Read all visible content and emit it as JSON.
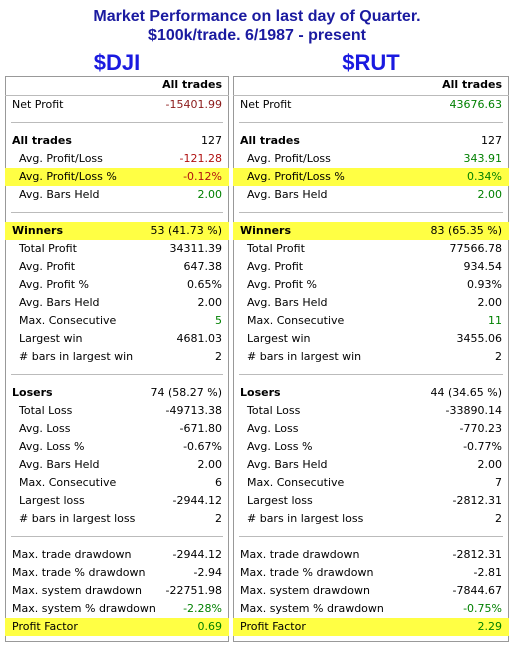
{
  "header": {
    "title": "Market Performance on last day of Quarter.",
    "subtitle": "$100k/trade. 6/1987 - present"
  },
  "panels": [
    {
      "symbol": "$DJI",
      "column_header": "All trades",
      "sections": [
        {
          "rows": [
            {
              "label": "Net Profit",
              "value": "-15401.99",
              "color": "#8b1a1a",
              "style": "plain"
            }
          ]
        },
        {
          "rows": [
            {
              "label": "All trades",
              "value": "127",
              "color": "#000000",
              "style": "head"
            },
            {
              "label": "Avg. Profit/Loss",
              "value": "-121.28",
              "color": "#b01010",
              "style": "sub"
            },
            {
              "label": "Avg. Profit/Loss %",
              "value": "-0.12%",
              "color": "#b01010",
              "style": "sub",
              "highlight": true
            },
            {
              "label": "Avg. Bars Held",
              "value": "2.00",
              "color": "#008000",
              "style": "sub"
            }
          ]
        },
        {
          "rows": [
            {
              "label": "Winners",
              "value": "53 (41.73 %)",
              "color": "#000000",
              "style": "head",
              "highlight": true
            },
            {
              "label": "Total Profit",
              "value": "34311.39",
              "color": "#000000",
              "style": "sub"
            },
            {
              "label": "Avg. Profit",
              "value": "647.38",
              "color": "#000000",
              "style": "sub"
            },
            {
              "label": "Avg. Profit %",
              "value": "0.65%",
              "color": "#000000",
              "style": "sub"
            },
            {
              "label": "Avg. Bars Held",
              "value": "2.00",
              "color": "#000000",
              "style": "sub"
            },
            {
              "label": "Max. Consecutive",
              "value": "5",
              "color": "#008000",
              "style": "sub"
            },
            {
              "label": "Largest win",
              "value": "4681.03",
              "color": "#000000",
              "style": "sub"
            },
            {
              "label": "# bars in largest win",
              "value": "2",
              "color": "#000000",
              "style": "sub"
            }
          ]
        },
        {
          "rows": [
            {
              "label": "Losers",
              "value": "74 (58.27 %)",
              "color": "#000000",
              "style": "head"
            },
            {
              "label": "Total Loss",
              "value": "-49713.38",
              "color": "#000000",
              "style": "sub"
            },
            {
              "label": "Avg. Loss",
              "value": "-671.80",
              "color": "#000000",
              "style": "sub"
            },
            {
              "label": "Avg. Loss %",
              "value": "-0.67%",
              "color": "#000000",
              "style": "sub"
            },
            {
              "label": "Avg. Bars Held",
              "value": "2.00",
              "color": "#000000",
              "style": "sub"
            },
            {
              "label": "Max. Consecutive",
              "value": "6",
              "color": "#000000",
              "style": "sub"
            },
            {
              "label": "Largest loss",
              "value": "-2944.12",
              "color": "#000000",
              "style": "sub"
            },
            {
              "label": "# bars in largest loss",
              "value": "2",
              "color": "#000000",
              "style": "sub"
            }
          ]
        },
        {
          "rows": [
            {
              "label": "Max. trade drawdown",
              "value": "-2944.12",
              "color": "#000000",
              "style": "plain"
            },
            {
              "label": "Max. trade % drawdown",
              "value": "-2.94",
              "color": "#000000",
              "style": "plain"
            },
            {
              "label": "Max. system drawdown",
              "value": "-22751.98",
              "color": "#000000",
              "style": "plain"
            },
            {
              "label": "Max. system % drawdown",
              "value": "-2.28%",
              "color": "#008000",
              "style": "plain"
            },
            {
              "label": "Profit Factor",
              "value": "0.69",
              "color": "#008000",
              "style": "plain",
              "highlight": true
            }
          ]
        }
      ]
    },
    {
      "symbol": "$RUT",
      "column_header": "All trades",
      "sections": [
        {
          "rows": [
            {
              "label": "Net Profit",
              "value": "43676.63",
              "color": "#008000",
              "style": "plain"
            }
          ]
        },
        {
          "rows": [
            {
              "label": "All trades",
              "value": "127",
              "color": "#000000",
              "style": "head"
            },
            {
              "label": "Avg. Profit/Loss",
              "value": "343.91",
              "color": "#008000",
              "style": "sub"
            },
            {
              "label": "Avg. Profit/Loss %",
              "value": "0.34%",
              "color": "#008000",
              "style": "sub",
              "highlight": true
            },
            {
              "label": "Avg. Bars Held",
              "value": "2.00",
              "color": "#008000",
              "style": "sub"
            }
          ]
        },
        {
          "rows": [
            {
              "label": "Winners",
              "value": "83 (65.35 %)",
              "color": "#000000",
              "style": "head",
              "highlight": true
            },
            {
              "label": "Total Profit",
              "value": "77566.78",
              "color": "#000000",
              "style": "sub"
            },
            {
              "label": "Avg. Profit",
              "value": "934.54",
              "color": "#000000",
              "style": "sub"
            },
            {
              "label": "Avg. Profit %",
              "value": "0.93%",
              "color": "#000000",
              "style": "sub"
            },
            {
              "label": "Avg. Bars Held",
              "value": "2.00",
              "color": "#000000",
              "style": "sub"
            },
            {
              "label": "Max. Consecutive",
              "value": "11",
              "color": "#008000",
              "style": "sub"
            },
            {
              "label": "Largest win",
              "value": "3455.06",
              "color": "#000000",
              "style": "sub"
            },
            {
              "label": "# bars in largest win",
              "value": "2",
              "color": "#000000",
              "style": "sub"
            }
          ]
        },
        {
          "rows": [
            {
              "label": "Losers",
              "value": "44 (34.65 %)",
              "color": "#000000",
              "style": "head"
            },
            {
              "label": "Total Loss",
              "value": "-33890.14",
              "color": "#000000",
              "style": "sub"
            },
            {
              "label": "Avg. Loss",
              "value": "-770.23",
              "color": "#000000",
              "style": "sub"
            },
            {
              "label": "Avg. Loss %",
              "value": "-0.77%",
              "color": "#000000",
              "style": "sub"
            },
            {
              "label": "Avg. Bars Held",
              "value": "2.00",
              "color": "#000000",
              "style": "sub"
            },
            {
              "label": "Max. Consecutive",
              "value": "7",
              "color": "#000000",
              "style": "sub"
            },
            {
              "label": "Largest loss",
              "value": "-2812.31",
              "color": "#000000",
              "style": "sub"
            },
            {
              "label": "# bars in largest loss",
              "value": "2",
              "color": "#000000",
              "style": "sub"
            }
          ]
        },
        {
          "rows": [
            {
              "label": "Max. trade drawdown",
              "value": "-2812.31",
              "color": "#000000",
              "style": "plain"
            },
            {
              "label": "Max. trade % drawdown",
              "value": "-2.81",
              "color": "#000000",
              "style": "plain"
            },
            {
              "label": "Max. system drawdown",
              "value": "-7844.67",
              "color": "#000000",
              "style": "plain"
            },
            {
              "label": "Max. system % drawdown",
              "value": "-0.75%",
              "color": "#008000",
              "style": "plain"
            },
            {
              "label": "Profit Factor",
              "value": "2.29",
              "color": "#008000",
              "style": "plain",
              "highlight": true
            }
          ]
        }
      ]
    }
  ]
}
